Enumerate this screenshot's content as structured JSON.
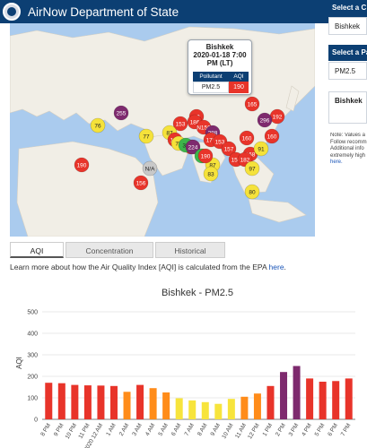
{
  "header": {
    "title": "AirNow Department of State"
  },
  "popup": {
    "city": "Bishkek",
    "datetime_line1": "2020-01-18 7:00",
    "datetime_line2": "PM (LT)",
    "col_pollutant": "Pollutant",
    "col_aqi": "AQI",
    "pollutant": "PM2.5",
    "aqi": "190"
  },
  "map_markers": [
    {
      "label": "165",
      "color": "#e8342a"
    },
    {
      "label": "192",
      "color": "#e8342a"
    },
    {
      "label": "296",
      "color": "#7e2a6e"
    },
    {
      "label": "255",
      "color": "#7e2a6e"
    },
    {
      "label": "153",
      "color": "#e8342a"
    },
    {
      "label": "76",
      "color": "#f5e23a"
    },
    {
      "label": "190",
      "color": "#e8342a"
    },
    {
      "label": "19",
      "color": "#e8342a"
    },
    {
      "label": "186",
      "color": "#e8342a"
    },
    {
      "label": "153",
      "color": "#e8342a"
    },
    {
      "label": "87",
      "color": "#f5e23a"
    },
    {
      "label": "77",
      "color": "#f5e23a"
    },
    {
      "label": "181",
      "color": "#e8342a"
    },
    {
      "label": "78",
      "color": "#f5e23a"
    },
    {
      "label": "32",
      "color": "#3cb54a"
    },
    {
      "label": "224",
      "color": "#7e2a6e"
    },
    {
      "label": "N156",
      "color": "#e8342a"
    },
    {
      "label": "288",
      "color": "#7e2a6e"
    },
    {
      "label": "176",
      "color": "#e8342a"
    },
    {
      "label": "153",
      "color": "#e8342a"
    },
    {
      "label": "160",
      "color": "#e8342a"
    },
    {
      "label": "160",
      "color": "#e8342a"
    },
    {
      "label": "157",
      "color": "#e8342a"
    },
    {
      "label": "168",
      "color": "#e8342a"
    },
    {
      "label": "91",
      "color": "#f5e23a"
    },
    {
      "label": "156",
      "color": "#e8342a"
    },
    {
      "label": "182",
      "color": "#e8342a"
    },
    {
      "label": "97",
      "color": "#f5e23a"
    },
    {
      "label": "87",
      "color": "#f5e23a"
    },
    {
      "label": "83",
      "color": "#f5e23a"
    },
    {
      "label": "8",
      "color": "#3cb54a"
    },
    {
      "label": "N/A",
      "color": "#c8c8c8"
    },
    {
      "label": "190",
      "color": "#e8342a"
    },
    {
      "label": "156",
      "color": "#e8342a"
    },
    {
      "label": "80",
      "color": "#f5e23a"
    }
  ],
  "right_panel": {
    "select_city_heading": "Select a C",
    "select_city_value": "Bishkek",
    "select_param_heading": "Select a Pa",
    "select_param_value": "PM2.5",
    "card_title": "Bishkek",
    "note_lines": [
      "Note: Values a",
      "Follow recomm",
      "Additional info",
      "extremely high",
      "here."
    ]
  },
  "tabs": [
    {
      "label": "AQI",
      "active": true
    },
    {
      "label": "Concentration",
      "active": false
    },
    {
      "label": "Historical",
      "active": false
    }
  ],
  "info": {
    "text": "Learn more about how the Air Quality Index [AQI] is calculated from the EPA ",
    "link": "here",
    "suffix": "."
  },
  "chart_data": {
    "type": "bar",
    "title": "Bishkek - PM2.5",
    "ylabel": "AQI",
    "xlabel": "",
    "ylim": [
      0,
      500
    ],
    "yticks": [
      0,
      100,
      200,
      300,
      400,
      500
    ],
    "grid": true,
    "categories": [
      "8 PM",
      "9 PM",
      "10 PM",
      "11 PM",
      "2020 12 AM",
      "1 AM",
      "2 AM",
      "3 AM",
      "4 AM",
      "5 AM",
      "6 AM",
      "7 AM",
      "8 AM",
      "9 AM",
      "10 AM",
      "11 AM",
      "12 PM",
      "1 PM",
      "2 PM",
      "3 PM",
      "4 PM",
      "5 PM",
      "6 PM",
      "7 PM"
    ],
    "values": [
      170,
      168,
      160,
      158,
      157,
      155,
      128,
      160,
      145,
      125,
      98,
      88,
      80,
      72,
      95,
      105,
      120,
      155,
      220,
      248,
      190,
      175,
      178,
      190
    ],
    "colors": [
      "#e8342a",
      "#e8342a",
      "#e8342a",
      "#e8342a",
      "#e8342a",
      "#e8342a",
      "#ff8c1a",
      "#e8342a",
      "#ff8c1a",
      "#ff8c1a",
      "#f7e43c",
      "#f7e43c",
      "#f7e43c",
      "#f7e43c",
      "#f7e43c",
      "#ff8c1a",
      "#ff8c1a",
      "#e8342a",
      "#7e2a6e",
      "#7e2a6e",
      "#e8342a",
      "#e8342a",
      "#e8342a",
      "#e8342a"
    ]
  }
}
